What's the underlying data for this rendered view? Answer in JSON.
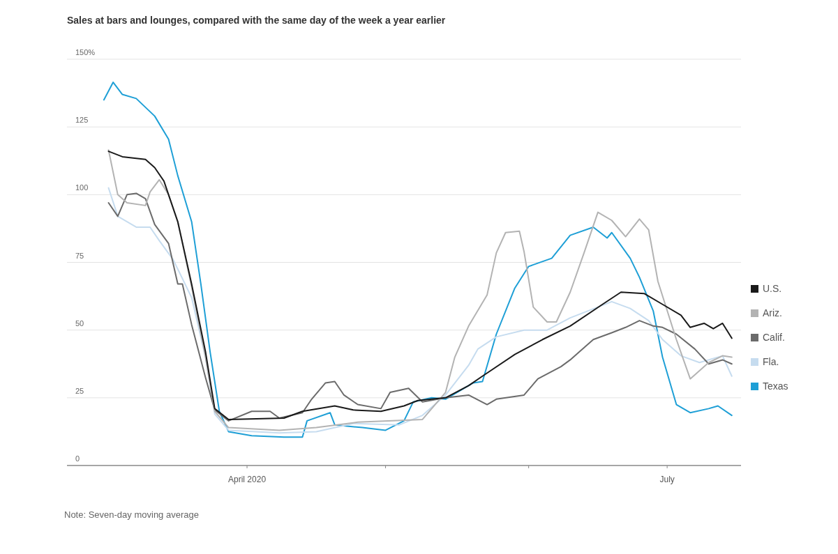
{
  "chart_data": {
    "type": "line",
    "title": "Sales at bars and lounges, compared with the same day of the week a year earlier",
    "annotations": [
      "Note: Seven-day moving average"
    ],
    "xlim": [
      "2020-02-22",
      "2020-07-17"
    ],
    "xticks": [
      {
        "value": "2020-04-01",
        "label": "April 2020"
      },
      {
        "value": "2020-05-01",
        "label": null
      },
      {
        "value": "2020-06-01",
        "label": null
      },
      {
        "value": "2020-07-01",
        "label": "July"
      }
    ],
    "ylim": [
      0,
      150
    ],
    "yticks": [
      0,
      25,
      50,
      75,
      100,
      125,
      {
        "value": 150,
        "label": "150%"
      }
    ],
    "grid": "y",
    "legend": "right",
    "marker": "none",
    "line_style": "solid",
    "series": [
      {
        "name": "U.S.",
        "color": "#1a1a1a",
        "x": [
          "2020-03-02",
          "2020-03-05",
          "2020-03-10",
          "2020-03-12",
          "2020-03-14",
          "2020-03-17",
          "2020-03-20",
          "2020-03-23",
          "2020-03-25",
          "2020-03-28",
          "2020-04-09",
          "2020-04-13",
          "2020-04-20",
          "2020-04-24",
          "2020-04-30",
          "2020-05-05",
          "2020-05-08",
          "2020-05-14",
          "2020-05-19",
          "2020-05-22",
          "2020-05-29",
          "2020-06-04",
          "2020-06-10",
          "2020-06-17",
          "2020-06-21",
          "2020-06-26",
          "2020-06-30",
          "2020-07-04",
          "2020-07-06",
          "2020-07-09",
          "2020-07-11",
          "2020-07-13",
          "2020-07-15"
        ],
        "values": [
          116,
          114,
          113,
          110,
          105,
          90,
          67,
          42,
          21,
          17,
          17.5,
          20,
          22,
          20.5,
          20,
          22,
          24,
          25,
          29.5,
          33,
          41,
          46.5,
          51.5,
          59.5,
          64,
          63.5,
          59.5,
          55.5,
          51,
          52.5,
          50.5,
          52.5,
          47
        ]
      },
      {
        "name": "Ariz.",
        "color": "#b3b3b3",
        "x": [
          "2020-03-02",
          "2020-03-04",
          "2020-03-06",
          "2020-03-10",
          "2020-03-11",
          "2020-03-13",
          "2020-03-15",
          "2020-03-17",
          "2020-03-20",
          "2020-03-23",
          "2020-03-25",
          "2020-03-28",
          "2020-04-08",
          "2020-04-16",
          "2020-04-25",
          "2020-05-09",
          "2020-05-14",
          "2020-05-16",
          "2020-05-19",
          "2020-05-23",
          "2020-05-25",
          "2020-05-27",
          "2020-05-30",
          "2020-05-31",
          "2020-06-02",
          "2020-06-05",
          "2020-06-07",
          "2020-06-10",
          "2020-06-13",
          "2020-06-16",
          "2020-06-19",
          "2020-06-22",
          "2020-06-25",
          "2020-06-27",
          "2020-06-29",
          "2020-07-03",
          "2020-07-06",
          "2020-07-10",
          "2020-07-13",
          "2020-07-15"
        ],
        "values": [
          116.5,
          100,
          97,
          96,
          101,
          105.5,
          100,
          90,
          66,
          40,
          20,
          14,
          13,
          14,
          16,
          17,
          27,
          40,
          51.5,
          63,
          78.5,
          86,
          86.5,
          79,
          58.5,
          53,
          53,
          64,
          78.5,
          93.5,
          90.5,
          84.5,
          91,
          87,
          68,
          46.5,
          32,
          38,
          40.5,
          40
        ]
      },
      {
        "name": "Calif.",
        "color": "#6b6b6b",
        "x": [
          "2020-03-02",
          "2020-03-04",
          "2020-03-06",
          "2020-03-08",
          "2020-03-10",
          "2020-03-12",
          "2020-03-15",
          "2020-03-17",
          "2020-03-18",
          "2020-03-20",
          "2020-03-23",
          "2020-03-25",
          "2020-03-28",
          "2020-04-02",
          "2020-04-06",
          "2020-04-08",
          "2020-04-13",
          "2020-04-15",
          "2020-04-18",
          "2020-04-20",
          "2020-04-22",
          "2020-04-25",
          "2020-04-30",
          "2020-05-02",
          "2020-05-06",
          "2020-05-09",
          "2020-05-14",
          "2020-05-19",
          "2020-05-23",
          "2020-05-25",
          "2020-05-31",
          "2020-06-03",
          "2020-06-08",
          "2020-06-10",
          "2020-06-15",
          "2020-06-19",
          "2020-06-22",
          "2020-06-25",
          "2020-06-28",
          "2020-06-30",
          "2020-07-03",
          "2020-07-07",
          "2020-07-10",
          "2020-07-13",
          "2020-07-15"
        ],
        "values": [
          97,
          92,
          100,
          100.5,
          98.5,
          89,
          82,
          67,
          67,
          52,
          32.5,
          20.5,
          16.5,
          20,
          20,
          17.5,
          19.5,
          24.5,
          30.5,
          31,
          26,
          22.5,
          21,
          27,
          28.5,
          23.5,
          25,
          26,
          22.5,
          24.5,
          26,
          32,
          36.5,
          39,
          46.5,
          49,
          51,
          53.5,
          51.5,
          51,
          48.5,
          43,
          37.5,
          39,
          37.5
        ]
      },
      {
        "name": "Fla.",
        "color": "#c6dcef",
        "x": [
          "2020-03-02",
          "2020-03-04",
          "2020-03-08",
          "2020-03-11",
          "2020-03-13",
          "2020-03-16",
          "2020-03-20",
          "2020-03-23",
          "2020-03-25",
          "2020-03-28",
          "2020-04-08",
          "2020-04-16",
          "2020-04-24",
          "2020-05-04",
          "2020-05-09",
          "2020-05-14",
          "2020-05-19",
          "2020-05-21",
          "2020-05-25",
          "2020-05-31",
          "2020-06-05",
          "2020-06-10",
          "2020-06-19",
          "2020-06-23",
          "2020-06-27",
          "2020-06-30",
          "2020-07-04",
          "2020-07-08",
          "2020-07-13",
          "2020-07-15"
        ],
        "values": [
          102.5,
          92,
          88,
          88,
          83,
          76,
          62,
          40,
          19,
          13,
          12,
          12.5,
          15.5,
          15,
          18.5,
          26,
          37,
          43,
          47.5,
          50,
          50,
          54.5,
          60.5,
          58,
          53.5,
          46.5,
          40.5,
          38,
          40.5,
          33
        ]
      },
      {
        "name": "Texas",
        "color": "#1e9fd6",
        "x": [
          "2020-03-01",
          "2020-03-03",
          "2020-03-05",
          "2020-03-08",
          "2020-03-12",
          "2020-03-15",
          "2020-03-17",
          "2020-03-20",
          "2020-03-22",
          "2020-03-24",
          "2020-03-26",
          "2020-03-28",
          "2020-04-02",
          "2020-04-09",
          "2020-04-13",
          "2020-04-14",
          "2020-04-19",
          "2020-04-20",
          "2020-04-26",
          "2020-05-01",
          "2020-05-05",
          "2020-05-07",
          "2020-05-11",
          "2020-05-14",
          "2020-05-20",
          "2020-05-22",
          "2020-05-25",
          "2020-05-29",
          "2020-06-01",
          "2020-06-06",
          "2020-06-10",
          "2020-06-15",
          "2020-06-18",
          "2020-06-19",
          "2020-06-23",
          "2020-06-25",
          "2020-06-28",
          "2020-06-30",
          "2020-07-03",
          "2020-07-06",
          "2020-07-10",
          "2020-07-12",
          "2020-07-15"
        ],
        "values": [
          135,
          141.5,
          137,
          135.5,
          129,
          120.5,
          107,
          90,
          67,
          42,
          20,
          12.5,
          11,
          10.5,
          10.5,
          16.5,
          19.5,
          15,
          14,
          13,
          16.5,
          23.5,
          25,
          24.5,
          30.5,
          31,
          48.5,
          65.5,
          73.5,
          76.5,
          85,
          88,
          84,
          86,
          76.5,
          69.5,
          57,
          40,
          22.5,
          19.5,
          21,
          22,
          18.5
        ]
      }
    ]
  }
}
